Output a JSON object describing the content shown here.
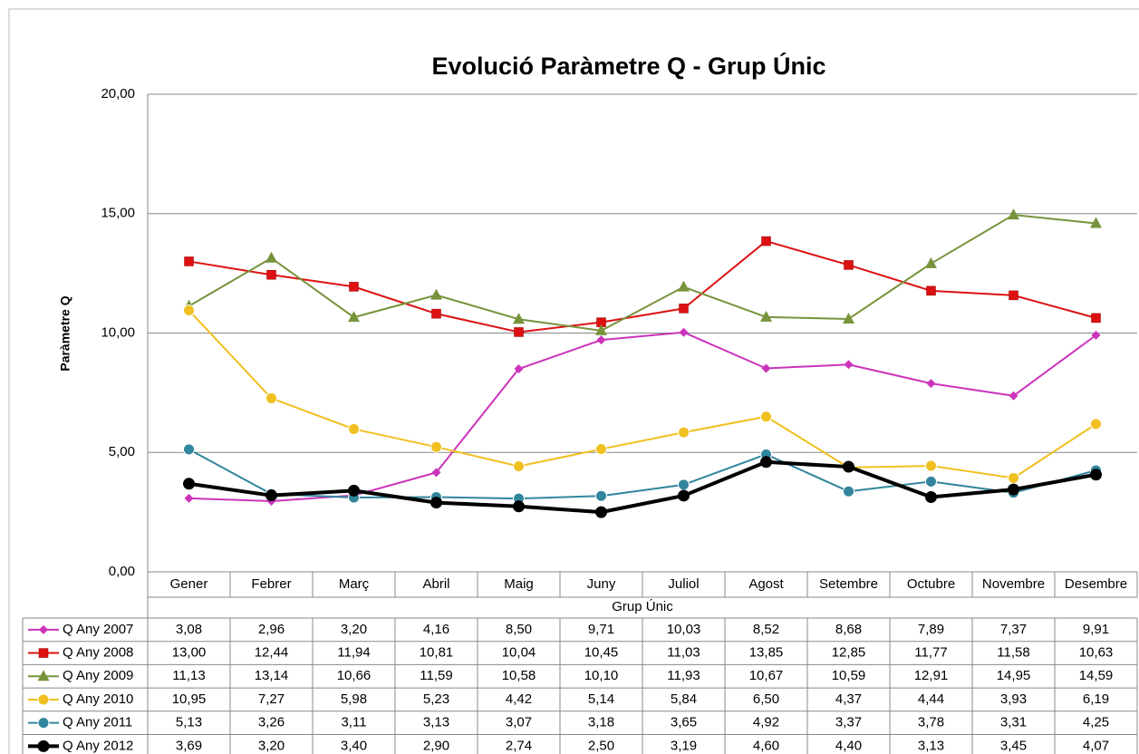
{
  "chart_data": {
    "type": "line",
    "title": "Evolució Paràmetre Q - Grup Únic",
    "y_label": "Paràmetre Q",
    "x_label": "Grup Únic",
    "categories": [
      "Gener",
      "Febrer",
      "Març",
      "Abril",
      "Maig",
      "Juny",
      "Juliol",
      "Agost",
      "Setembre",
      "Octubre",
      "Novembre",
      "Desembre"
    ],
    "ylim": [
      0,
      20
    ],
    "yticks": [
      {
        "value": 0,
        "label": "0,00"
      },
      {
        "value": 5,
        "label": "5,00"
      },
      {
        "value": 10,
        "label": "10,00"
      },
      {
        "value": 15,
        "label": "15,00"
      },
      {
        "value": 20,
        "label": "20,00"
      }
    ],
    "grid": true,
    "series": [
      {
        "name": "Q Any 2007",
        "color": "#cc33bb",
        "marker": "diamond",
        "values": [
          3.08,
          2.96,
          3.2,
          4.16,
          8.5,
          9.71,
          10.03,
          8.52,
          8.68,
          7.89,
          7.37,
          9.91
        ],
        "value_labels": [
          "3,08",
          "2,96",
          "3,20",
          "4,16",
          "8,50",
          "9,71",
          "10,03",
          "8,52",
          "8,68",
          "7,89",
          "7,37",
          "9,91"
        ]
      },
      {
        "name": "Q Any 2008",
        "color": "#dd1111",
        "marker": "square",
        "values": [
          13.0,
          12.44,
          11.94,
          10.81,
          10.04,
          10.45,
          11.03,
          13.85,
          12.85,
          11.77,
          11.58,
          10.63
        ],
        "value_labels": [
          "13,00",
          "12,44",
          "11,94",
          "10,81",
          "10,04",
          "10,45",
          "11,03",
          "13,85",
          "12,85",
          "11,77",
          "11,58",
          "10,63"
        ]
      },
      {
        "name": "Q Any 2009",
        "color": "#77933c",
        "marker": "triangle",
        "values": [
          11.13,
          13.14,
          10.66,
          11.59,
          10.58,
          10.1,
          11.93,
          10.67,
          10.59,
          12.91,
          14.95,
          14.59
        ],
        "value_labels": [
          "11,13",
          "13,14",
          "10,66",
          "11,59",
          "10,58",
          "10,10",
          "11,93",
          "10,67",
          "10,59",
          "12,91",
          "14,95",
          "14,59"
        ]
      },
      {
        "name": "Q Any 2010",
        "color": "#f0c020",
        "marker": "circle",
        "values": [
          10.95,
          7.27,
          5.98,
          5.23,
          4.42,
          5.14,
          5.84,
          6.5,
          4.37,
          4.44,
          3.93,
          6.19
        ],
        "value_labels": [
          "10,95",
          "7,27",
          "5,98",
          "5,23",
          "4,42",
          "5,14",
          "5,84",
          "6,50",
          "4,37",
          "4,44",
          "3,93",
          "6,19"
        ]
      },
      {
        "name": "Q Any 2011",
        "color": "#31859c",
        "marker": "circle",
        "values": [
          5.13,
          3.26,
          3.11,
          3.13,
          3.07,
          3.18,
          3.65,
          4.92,
          3.37,
          3.78,
          3.31,
          4.25
        ],
        "value_labels": [
          "5,13",
          "3,26",
          "3,11",
          "3,13",
          "3,07",
          "3,18",
          "3,65",
          "4,92",
          "3,37",
          "3,78",
          "3,31",
          "4,25"
        ]
      },
      {
        "name": "Q Any 2012",
        "color": "#000000",
        "marker": "circle",
        "width": 4,
        "values": [
          3.69,
          3.2,
          3.4,
          2.9,
          2.74,
          2.5,
          3.19,
          4.6,
          4.4,
          3.13,
          3.45,
          4.07
        ],
        "value_labels": [
          "3,69",
          "3,20",
          "3,40",
          "2,90",
          "2,74",
          "2,50",
          "3,19",
          "4,60",
          "4,40",
          "3,13",
          "3,45",
          "4,07"
        ]
      }
    ]
  }
}
